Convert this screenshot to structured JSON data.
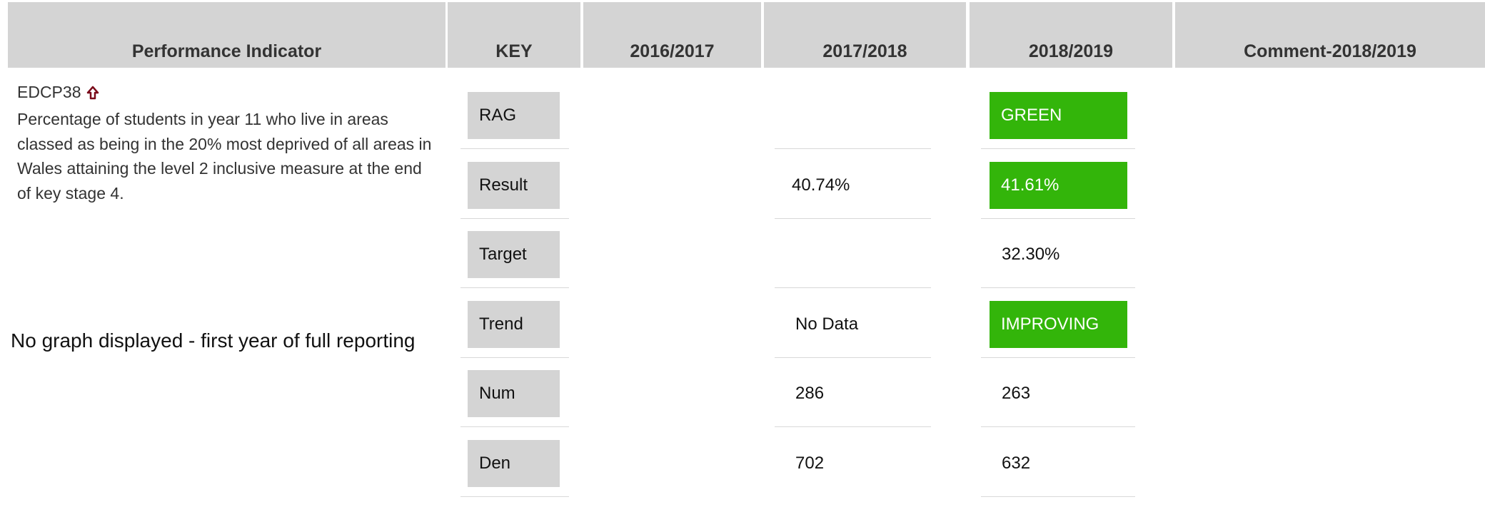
{
  "table": {
    "headers": [
      "Performance Indicator",
      "KEY",
      "2016/2017",
      "2017/2018",
      "2018/2019",
      "Comment-2018/2019"
    ],
    "indicator": {
      "code": "EDCP38",
      "description": "Percentage of students in year 11 who live in areas classed as being in the 20% most deprived of all areas in Wales attaining the level 2 inclusive measure at the end of key stage 4.",
      "note": "No graph displayed - first year of full reporting"
    },
    "highlight_color": "#33b50a",
    "rows": [
      {
        "key": "RAG",
        "y2018": "GREEN",
        "highlight_2018": true
      },
      {
        "key": "Result",
        "y2017": "40.74%",
        "y2018": "41.61%",
        "highlight_2018": true
      },
      {
        "key": "Target",
        "y2018": "32.30%",
        "highlight_2018": false
      },
      {
        "key": "Trend",
        "y2017": "No Data",
        "y2018": "IMPROVING",
        "highlight_2018": true
      },
      {
        "key": "Num",
        "y2017": "286",
        "y2018": "263",
        "highlight_2018": false
      },
      {
        "key": "Den",
        "y2017": "702",
        "y2018": "632",
        "highlight_2018": false
      }
    ]
  }
}
